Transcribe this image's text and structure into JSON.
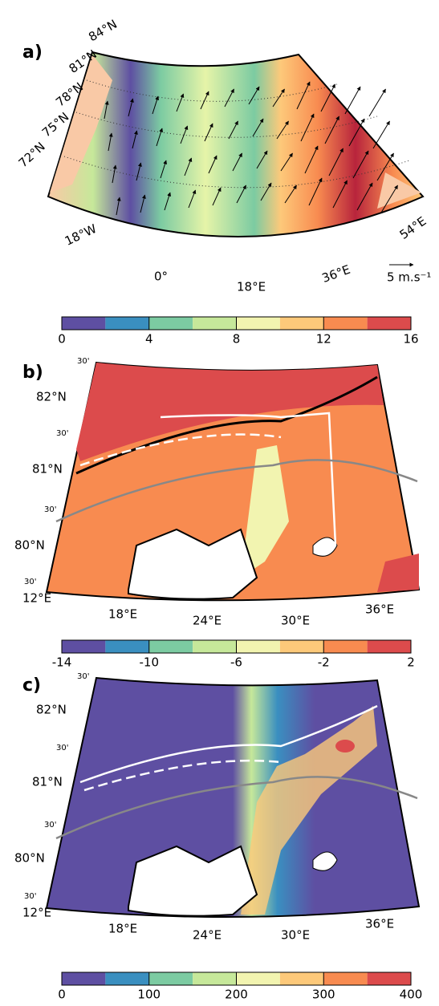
{
  "panels": [
    {
      "label": "a)",
      "lat_labels": [
        "84°N",
        "81°N",
        "78°N",
        "75°N",
        "72°N"
      ],
      "lon_labels": [
        "18°W",
        "0°",
        "18°E",
        "36°E",
        "54°E"
      ],
      "scale_label": "5 m.s⁻¹",
      "colorbar": {
        "lim": [
          0,
          16
        ],
        "ticks": [
          0,
          4,
          8,
          12,
          16
        ],
        "colors": [
          "#5e4fa2",
          "#3a8fc0",
          "#7ccba2",
          "#c6e89a",
          "#f2f4b0",
          "#fdc97a",
          "#f88b50",
          "#dc4b4c"
        ]
      }
    },
    {
      "label": "b)",
      "lat_labels": [
        "82°N",
        "81°N",
        "80°N"
      ],
      "minute_labels": [
        "30'",
        "30'",
        "30'",
        "30'"
      ],
      "lon_labels": [
        "12°E",
        "18°E",
        "24°E",
        "30°E",
        "36°E"
      ],
      "colorbar": {
        "lim": [
          -14,
          2
        ],
        "ticks": [
          -14,
          -10,
          -6,
          -2,
          2
        ],
        "colors": [
          "#5e4fa2",
          "#3a8fc0",
          "#7ccba2",
          "#c6e89a",
          "#f2f4b0",
          "#fdc97a",
          "#f88b50",
          "#dc4b4c"
        ]
      }
    },
    {
      "label": "c)",
      "lat_labels": [
        "82°N",
        "81°N",
        "80°N"
      ],
      "minute_labels": [
        "30'",
        "30'",
        "30'",
        "30'"
      ],
      "lon_labels": [
        "12°E",
        "18°E",
        "24°E",
        "30°E",
        "36°E"
      ],
      "colorbar": {
        "lim": [
          0,
          400
        ],
        "ticks": [
          0,
          100,
          200,
          300,
          400
        ],
        "colors": [
          "#5e4fa2",
          "#3a8fc0",
          "#7ccba2",
          "#c6e89a",
          "#f2f4b0",
          "#fdc97a",
          "#f88b50",
          "#dc4b4c"
        ]
      }
    }
  ]
}
